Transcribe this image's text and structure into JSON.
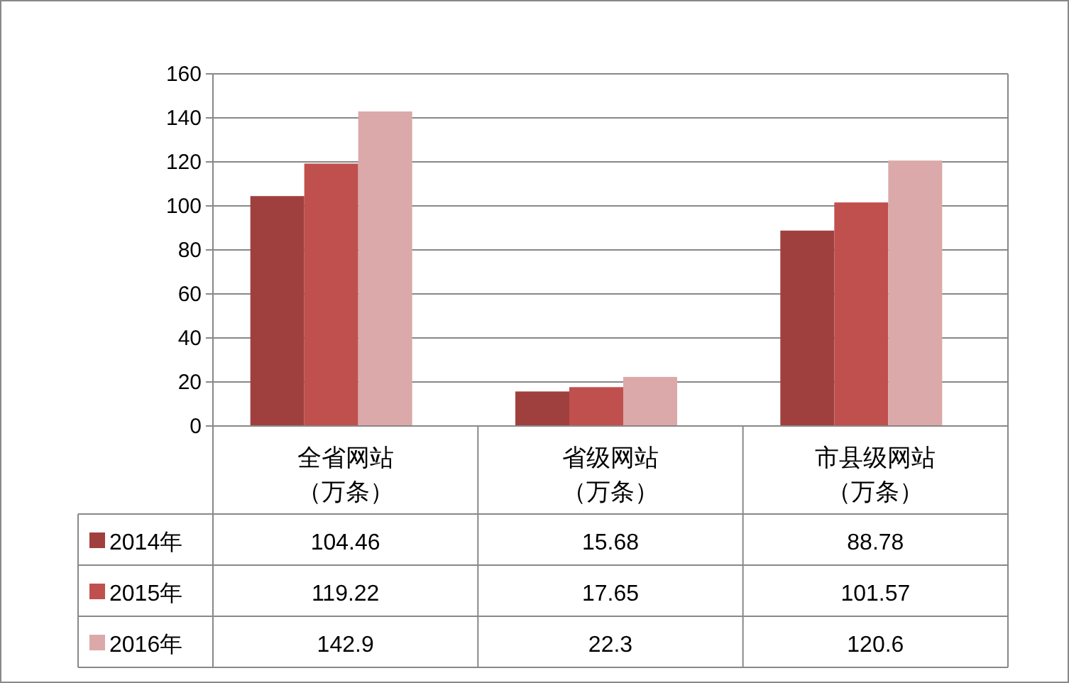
{
  "chart_data": {
    "type": "bar",
    "categories": [
      "全省网站（万条）",
      "省级网站（万条）",
      "市县级网站（万条）"
    ],
    "series": [
      {
        "name": "2014年",
        "color": "#a0403e",
        "values": [
          104.46,
          15.68,
          88.78
        ]
      },
      {
        "name": "2015年",
        "color": "#c0504d",
        "values": [
          119.22,
          17.65,
          101.57
        ]
      },
      {
        "name": "2016年",
        "color": "#dba9a9",
        "values": [
          142.9,
          22.3,
          120.6
        ]
      }
    ],
    "ylim": [
      0,
      160
    ],
    "yticks": [
      0,
      20,
      40,
      60,
      80,
      100,
      120,
      140,
      160
    ],
    "grid": "y",
    "legend": "bottom left",
    "data_labels": true
  }
}
